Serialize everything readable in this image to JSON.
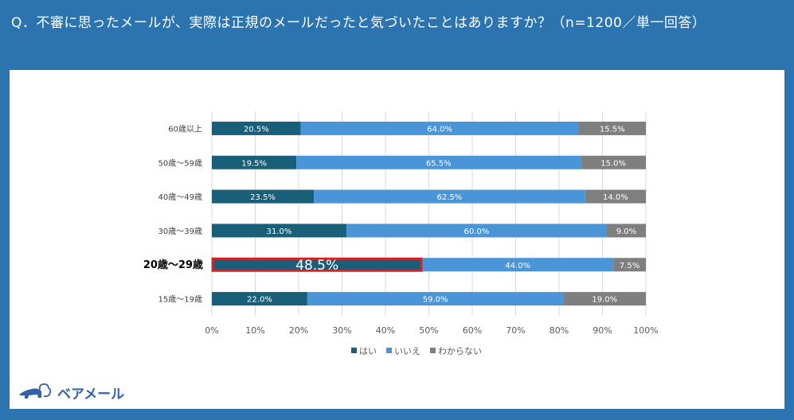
{
  "title": "Q．不審に思ったメールが、実際は正規のメールだったと気づいたことはありますか？（n=1200／単一回答）",
  "logo_text": "ベアメール",
  "chart_data": {
    "type": "bar",
    "orientation": "horizontal",
    "stacked": "percent",
    "categories": [
      "60歳以上",
      "50歳～59歳",
      "40歳～49歳",
      "30歳～39歳",
      "20歳～29歳",
      "15歳～19歳"
    ],
    "highlighted_category": "20歳～29歳",
    "series": [
      {
        "name": "はい",
        "color": "#1a5f7a",
        "values": [
          20.5,
          19.5,
          23.5,
          31.0,
          48.5,
          22.0
        ]
      },
      {
        "name": "いいえ",
        "color": "#4a94d8",
        "values": [
          64.0,
          65.5,
          62.5,
          60.0,
          44.0,
          59.0
        ]
      },
      {
        "name": "わからない",
        "color": "#7f7f7f",
        "values": [
          15.5,
          15.0,
          14.0,
          9.0,
          7.5,
          19.0
        ]
      }
    ],
    "xlim": [
      0,
      100
    ],
    "xticks": [
      "0%",
      "10%",
      "20%",
      "30%",
      "40%",
      "50%",
      "60%",
      "70%",
      "80%",
      "90%",
      "100%"
    ],
    "grid": true,
    "legend": "bottom",
    "highlight_color": "#e02020"
  }
}
